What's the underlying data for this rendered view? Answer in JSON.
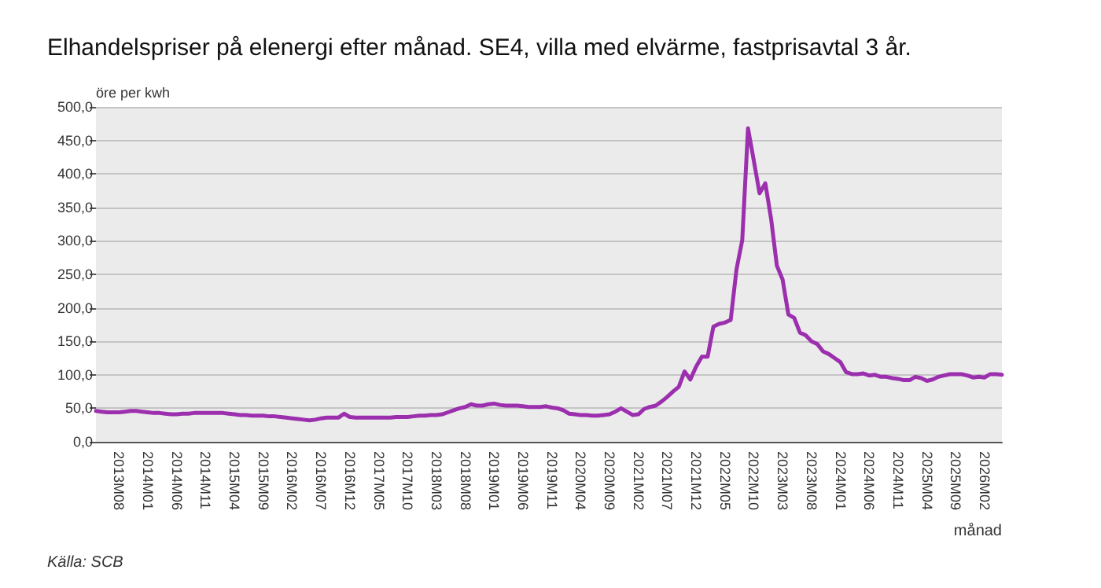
{
  "chart_data": {
    "type": "line",
    "title": "Elhandelspriser på elenergi efter månad. SE4, villa med elvärme, fastprisavtal 3 år.",
    "ylabel": "öre per kwh",
    "xlabel": "månad",
    "annotations": [
      "Källa: SCB"
    ],
    "categories": [
      null,
      null,
      null,
      null,
      "2013M08",
      null,
      null,
      null,
      null,
      "2014M01",
      null,
      null,
      null,
      null,
      "2014M06",
      null,
      null,
      null,
      null,
      "2014M11",
      null,
      null,
      null,
      null,
      "2015M04",
      null,
      null,
      null,
      null,
      "2015M09",
      null,
      null,
      null,
      null,
      "2016M02",
      null,
      null,
      null,
      null,
      "2016M07",
      null,
      null,
      null,
      null,
      "2016M12",
      null,
      null,
      null,
      null,
      "2017M05",
      null,
      null,
      null,
      null,
      "2017M10",
      null,
      null,
      null,
      null,
      "2018M03",
      null,
      null,
      null,
      null,
      "2018M08",
      null,
      null,
      null,
      null,
      "2019M01",
      null,
      null,
      null,
      null,
      "2019M06",
      null,
      null,
      null,
      null,
      "2019M11",
      null,
      null,
      null,
      null,
      "2020M04",
      null,
      null,
      null,
      null,
      "2020M09",
      null,
      null,
      null,
      null,
      "2021M02",
      null,
      null,
      null,
      null,
      "2021M07",
      null,
      null,
      null,
      null,
      "2021M12",
      null,
      null,
      null,
      null,
      "2022M05",
      null,
      null,
      null,
      null,
      "2022M10",
      null,
      null,
      null,
      null,
      "2023M03",
      null,
      null,
      null,
      null,
      "2023M08",
      null,
      null,
      null,
      null,
      "2024M01",
      null,
      null,
      null,
      null,
      "2024M06",
      null,
      null,
      null,
      null,
      "2024M11",
      null,
      null,
      null,
      null,
      "2025M04",
      null,
      null,
      null,
      null,
      "2025M09",
      null,
      null,
      null,
      null,
      "2026M02",
      null,
      null,
      null
    ],
    "series": [
      {
        "color": "#9b2fae",
        "values": [
          46,
          45,
          44,
          44,
          44,
          45,
          46,
          46,
          45,
          44,
          43,
          43,
          42,
          41,
          41,
          42,
          42,
          43,
          43,
          43,
          43,
          43,
          43,
          42,
          41,
          40,
          40,
          39,
          39,
          39,
          38,
          38,
          37,
          36,
          35,
          34,
          33,
          32,
          33,
          35,
          36,
          36,
          36,
          42,
          37,
          36,
          36,
          36,
          36,
          36,
          36,
          36,
          37,
          37,
          37,
          38,
          39,
          39,
          40,
          40,
          41,
          44,
          47,
          50,
          52,
          56,
          54,
          54,
          56,
          57,
          55,
          54,
          54,
          54,
          53,
          52,
          52,
          52,
          53,
          51,
          50,
          47,
          42,
          41,
          40,
          40,
          39,
          39,
          40,
          41,
          45,
          50,
          45,
          40,
          41,
          49,
          52,
          54,
          60,
          67,
          75,
          82,
          105,
          93,
          112,
          127,
          127,
          172,
          176,
          178,
          182,
          257,
          301,
          468,
          420,
          371,
          386,
          333,
          263,
          242,
          190,
          185,
          163,
          159,
          150,
          146,
          135,
          131,
          125,
          119,
          104,
          101,
          101,
          102,
          99,
          100,
          97,
          97,
          95,
          94,
          92,
          92,
          97,
          95,
          91,
          93,
          97,
          99,
          101,
          101,
          101,
          99,
          96,
          97,
          96,
          101,
          101,
          100
        ]
      }
    ],
    "ylim": [
      0,
      500
    ],
    "yticks": [
      {
        "value": 0,
        "label": "0,0"
      },
      {
        "value": 50,
        "label": "50,0"
      },
      {
        "value": 100,
        "label": "100,0"
      },
      {
        "value": 150,
        "label": "150,0"
      },
      {
        "value": 200,
        "label": "200,0"
      },
      {
        "value": 250,
        "label": "250,0"
      },
      {
        "value": 300,
        "label": "300,0"
      },
      {
        "value": 350,
        "label": "350,0"
      },
      {
        "value": 400,
        "label": "400,0"
      },
      {
        "value": 450,
        "label": "450,0"
      },
      {
        "value": 500,
        "label": "500,0"
      }
    ],
    "grid": "y",
    "marker": "none",
    "line_style": "solid"
  }
}
